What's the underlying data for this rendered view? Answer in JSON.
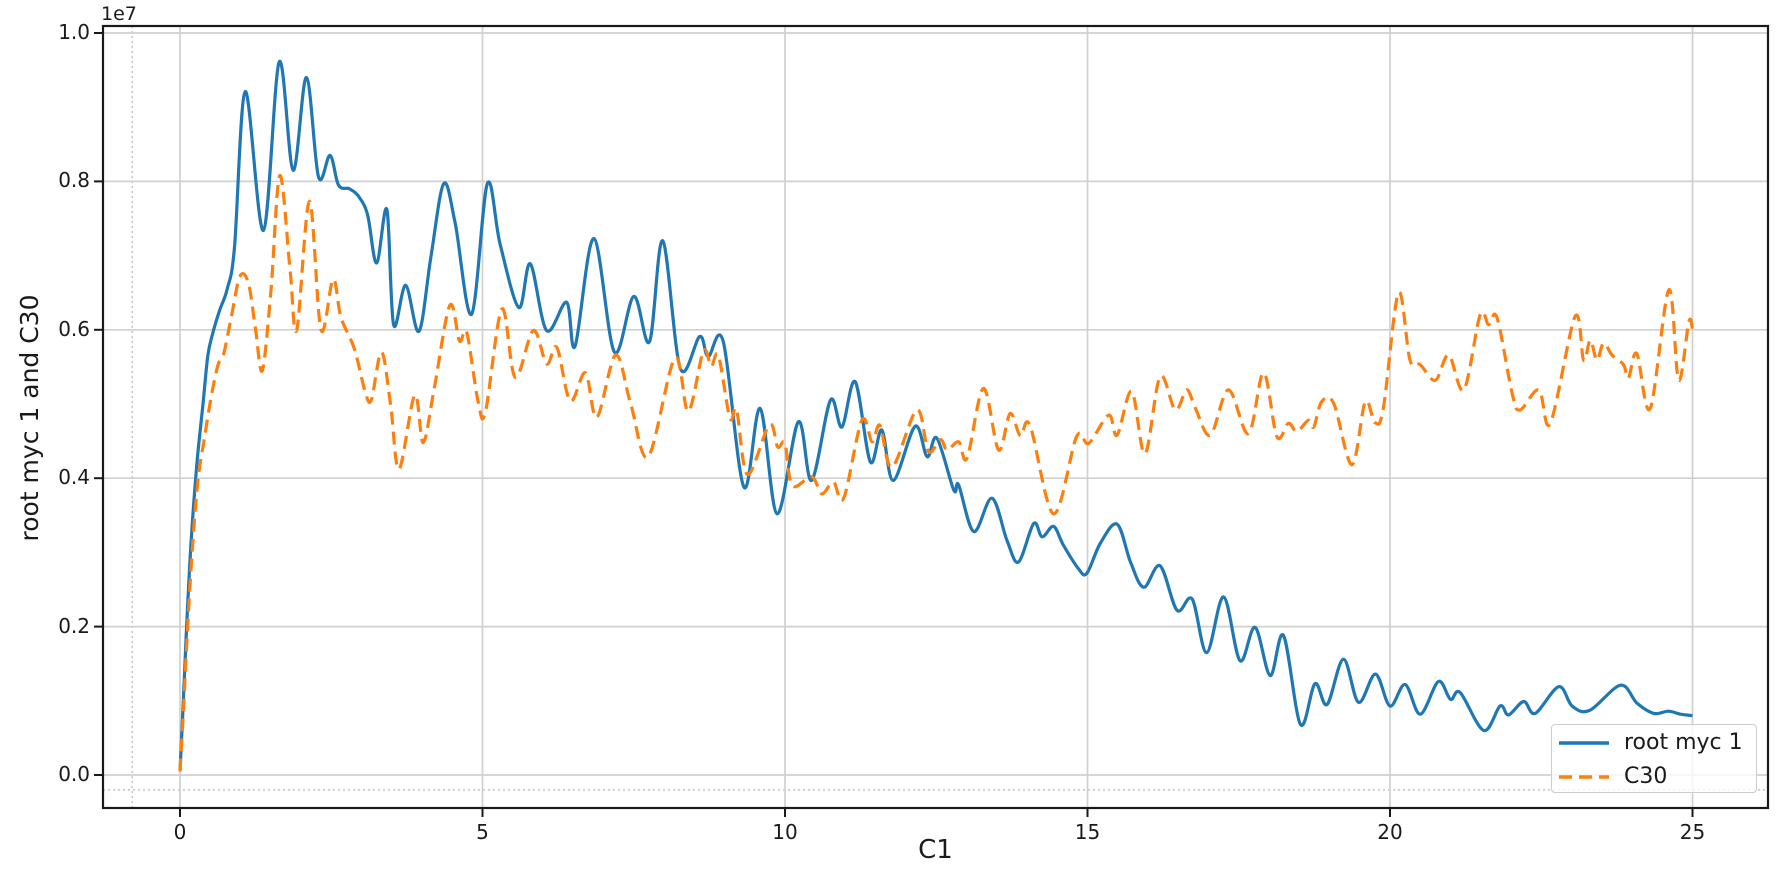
{
  "figure": {
    "offset_text": "1e7",
    "background_color": "#ffffff",
    "spine_color": "#1a1a1a",
    "grid_color": "#d0d0d0",
    "minor_dotted_color": "#b5b5b5",
    "text_color": "#1a1a1a",
    "legend_border_color": "#cccccc"
  },
  "chart_data": {
    "type": "line",
    "title": "",
    "xlabel": "C1",
    "ylabel": "root myc 1 and C30",
    "y_offset_label": "1e7",
    "xlim": [
      -1.25,
      26.25
    ],
    "ylim": [
      -450000,
      10140000
    ],
    "x_ticks": [
      0,
      5,
      10,
      15,
      20,
      25
    ],
    "x_tick_labels": [
      "0",
      "5",
      "10",
      "15",
      "20",
      "25"
    ],
    "y_ticks": [
      0,
      2000000,
      4000000,
      6000000,
      8000000,
      10000000
    ],
    "y_tick_labels": [
      "0.0",
      "0.2",
      "0.4",
      "0.6",
      "0.8",
      "1.0"
    ],
    "grid": true,
    "minor_dotted_vline_x": -0.79,
    "minor_dotted_hline_y": -200000,
    "legend_position": "lower right",
    "series": [
      {
        "name": "root myc 1",
        "color": "#1f77b4",
        "linestyle": "solid",
        "points": [
          [
            0,
            50000
          ],
          [
            0.05,
            900000
          ],
          [
            0.1,
            1850000
          ],
          [
            0.18,
            3100000
          ],
          [
            0.28,
            4200000
          ],
          [
            0.38,
            5000000
          ],
          [
            0.46,
            5650000
          ],
          [
            0.54,
            5950000
          ],
          [
            0.65,
            6250000
          ],
          [
            0.78,
            6550000
          ],
          [
            0.9,
            7100000
          ],
          [
            1.08,
            9210000
          ],
          [
            1.38,
            7340000
          ],
          [
            1.64,
            9610000
          ],
          [
            1.87,
            8150000
          ],
          [
            2.09,
            9400000
          ],
          [
            2.29,
            8060000
          ],
          [
            2.48,
            8350000
          ],
          [
            2.62,
            7950000
          ],
          [
            2.8,
            7900000
          ],
          [
            2.95,
            7800000
          ],
          [
            3.1,
            7550000
          ],
          [
            3.25,
            6900000
          ],
          [
            3.42,
            7620000
          ],
          [
            3.53,
            6070000
          ],
          [
            3.73,
            6600000
          ],
          [
            3.95,
            5980000
          ],
          [
            4.15,
            7000000
          ],
          [
            4.36,
            7970000
          ],
          [
            4.55,
            7430000
          ],
          [
            4.82,
            6210000
          ],
          [
            5.08,
            7970000
          ],
          [
            5.29,
            7160000
          ],
          [
            5.6,
            6300000
          ],
          [
            5.79,
            6890000
          ],
          [
            6.06,
            5990000
          ],
          [
            6.39,
            6370000
          ],
          [
            6.53,
            5780000
          ],
          [
            6.84,
            7230000
          ],
          [
            7.18,
            5700000
          ],
          [
            7.5,
            6450000
          ],
          [
            7.76,
            5840000
          ],
          [
            7.98,
            7200000
          ],
          [
            8.27,
            5480000
          ],
          [
            8.59,
            5910000
          ],
          [
            8.73,
            5640000
          ],
          [
            8.98,
            5840000
          ],
          [
            9.32,
            3880000
          ],
          [
            9.59,
            4940000
          ],
          [
            9.87,
            3520000
          ],
          [
            10.22,
            4760000
          ],
          [
            10.44,
            3970000
          ],
          [
            10.75,
            5050000
          ],
          [
            10.94,
            4690000
          ],
          [
            11.16,
            5300000
          ],
          [
            11.41,
            4220000
          ],
          [
            11.6,
            4650000
          ],
          [
            11.79,
            3970000
          ],
          [
            12.15,
            4700000
          ],
          [
            12.35,
            4290000
          ],
          [
            12.51,
            4540000
          ],
          [
            12.79,
            3840000
          ],
          [
            12.87,
            3910000
          ],
          [
            13.12,
            3280000
          ],
          [
            13.42,
            3730000
          ],
          [
            13.67,
            3160000
          ],
          [
            13.86,
            2870000
          ],
          [
            14.11,
            3390000
          ],
          [
            14.25,
            3210000
          ],
          [
            14.44,
            3350000
          ],
          [
            14.6,
            3100000
          ],
          [
            14.85,
            2780000
          ],
          [
            14.99,
            2720000
          ],
          [
            15.21,
            3120000
          ],
          [
            15.49,
            3380000
          ],
          [
            15.71,
            2870000
          ],
          [
            15.93,
            2530000
          ],
          [
            16.2,
            2820000
          ],
          [
            16.48,
            2220000
          ],
          [
            16.73,
            2370000
          ],
          [
            16.97,
            1650000
          ],
          [
            17.25,
            2400000
          ],
          [
            17.52,
            1540000
          ],
          [
            17.77,
            1990000
          ],
          [
            18.02,
            1340000
          ],
          [
            18.24,
            1880000
          ],
          [
            18.52,
            680000
          ],
          [
            18.76,
            1230000
          ],
          [
            18.96,
            950000
          ],
          [
            19.23,
            1560000
          ],
          [
            19.48,
            980000
          ],
          [
            19.76,
            1360000
          ],
          [
            20,
            930000
          ],
          [
            20.25,
            1220000
          ],
          [
            20.5,
            820000
          ],
          [
            20.8,
            1260000
          ],
          [
            21,
            1020000
          ],
          [
            21.16,
            1110000
          ],
          [
            21.55,
            600000
          ],
          [
            21.82,
            930000
          ],
          [
            21.96,
            810000
          ],
          [
            22.21,
            990000
          ],
          [
            22.4,
            830000
          ],
          [
            22.79,
            1190000
          ],
          [
            23.01,
            930000
          ],
          [
            23.3,
            870000
          ],
          [
            23.81,
            1210000
          ],
          [
            24.08,
            970000
          ],
          [
            24.36,
            830000
          ],
          [
            24.6,
            860000
          ],
          [
            24.8,
            820000
          ],
          [
            25,
            800000
          ]
        ]
      },
      {
        "name": "C30",
        "color": "#ff7f0e",
        "linestyle": "dashed",
        "points": [
          [
            0,
            50000
          ],
          [
            0.06,
            900000
          ],
          [
            0.12,
            1900000
          ],
          [
            0.2,
            3000000
          ],
          [
            0.3,
            4000000
          ],
          [
            0.4,
            4520000
          ],
          [
            0.52,
            5120000
          ],
          [
            0.63,
            5530000
          ],
          [
            0.72,
            5670000
          ],
          [
            0.85,
            6180000
          ],
          [
            0.99,
            6720000
          ],
          [
            1.13,
            6630000
          ],
          [
            1.25,
            6000000
          ],
          [
            1.36,
            5450000
          ],
          [
            1.5,
            6500000
          ],
          [
            1.65,
            8080000
          ],
          [
            1.82,
            6800000
          ],
          [
            1.93,
            6000000
          ],
          [
            2.14,
            7730000
          ],
          [
            2.33,
            6000000
          ],
          [
            2.53,
            6680000
          ],
          [
            2.66,
            6170000
          ],
          [
            2.88,
            5750000
          ],
          [
            3.05,
            5200000
          ],
          [
            3.16,
            5050000
          ],
          [
            3.33,
            5700000
          ],
          [
            3.48,
            5000000
          ],
          [
            3.62,
            4120000
          ],
          [
            3.88,
            5120000
          ],
          [
            4.02,
            4480000
          ],
          [
            4.2,
            5200000
          ],
          [
            4.46,
            6330000
          ],
          [
            4.62,
            5850000
          ],
          [
            4.74,
            5960000
          ],
          [
            4.93,
            5020000
          ],
          [
            5.05,
            4900000
          ],
          [
            5.32,
            6280000
          ],
          [
            5.54,
            5360000
          ],
          [
            5.84,
            5990000
          ],
          [
            6.06,
            5540000
          ],
          [
            6.23,
            5760000
          ],
          [
            6.45,
            5040000
          ],
          [
            6.7,
            5420000
          ],
          [
            6.89,
            4820000
          ],
          [
            7.2,
            5660000
          ],
          [
            7.45,
            5000000
          ],
          [
            7.74,
            4290000
          ],
          [
            8.18,
            5620000
          ],
          [
            8.4,
            4900000
          ],
          [
            8.65,
            5710000
          ],
          [
            8.78,
            5510000
          ],
          [
            8.9,
            5650000
          ],
          [
            9.09,
            4810000
          ],
          [
            9.2,
            4920000
          ],
          [
            9.38,
            4050000
          ],
          [
            9.74,
            4720000
          ],
          [
            9.88,
            4420000
          ],
          [
            10,
            4470000
          ],
          [
            10.12,
            3900000
          ],
          [
            10.44,
            4020000
          ],
          [
            10.61,
            3790000
          ],
          [
            10.8,
            3950000
          ],
          [
            10.97,
            3730000
          ],
          [
            11.27,
            4780000
          ],
          [
            11.44,
            4490000
          ],
          [
            11.57,
            4710000
          ],
          [
            11.77,
            4150000
          ],
          [
            12.18,
            4920000
          ],
          [
            12.37,
            4360000
          ],
          [
            12.57,
            4520000
          ],
          [
            12.68,
            4380000
          ],
          [
            12.87,
            4490000
          ],
          [
            13.01,
            4270000
          ],
          [
            13.28,
            5210000
          ],
          [
            13.53,
            4380000
          ],
          [
            13.72,
            4870000
          ],
          [
            13.89,
            4570000
          ],
          [
            14.05,
            4710000
          ],
          [
            14.44,
            3520000
          ],
          [
            14.82,
            4560000
          ],
          [
            15.02,
            4470000
          ],
          [
            15.35,
            4850000
          ],
          [
            15.49,
            4580000
          ],
          [
            15.73,
            5170000
          ],
          [
            15.95,
            4330000
          ],
          [
            16.2,
            5370000
          ],
          [
            16.45,
            4920000
          ],
          [
            16.64,
            5190000
          ],
          [
            16.78,
            4950000
          ],
          [
            17.03,
            4580000
          ],
          [
            17.33,
            5190000
          ],
          [
            17.66,
            4600000
          ],
          [
            17.91,
            5420000
          ],
          [
            18.13,
            4560000
          ],
          [
            18.32,
            4740000
          ],
          [
            18.46,
            4630000
          ],
          [
            18.65,
            4780000
          ],
          [
            18.74,
            4690000
          ],
          [
            18.87,
            5030000
          ],
          [
            19.07,
            5010000
          ],
          [
            19.37,
            4180000
          ],
          [
            19.59,
            5030000
          ],
          [
            19.75,
            4750000
          ],
          [
            19.89,
            4940000
          ],
          [
            20.14,
            6500000
          ],
          [
            20.33,
            5590000
          ],
          [
            20.5,
            5530000
          ],
          [
            20.75,
            5320000
          ],
          [
            20.97,
            5660000
          ],
          [
            21.22,
            5190000
          ],
          [
            21.49,
            6200000
          ],
          [
            21.63,
            6070000
          ],
          [
            21.77,
            6160000
          ],
          [
            22.02,
            5140000
          ],
          [
            22.15,
            4920000
          ],
          [
            22.46,
            5190000
          ],
          [
            22.65,
            4740000
          ],
          [
            23.06,
            6180000
          ],
          [
            23.2,
            5590000
          ],
          [
            23.31,
            5860000
          ],
          [
            23.42,
            5590000
          ],
          [
            23.53,
            5820000
          ],
          [
            23.67,
            5660000
          ],
          [
            23.86,
            5530000
          ],
          [
            23.94,
            5350000
          ],
          [
            24.08,
            5680000
          ],
          [
            24.3,
            4940000
          ],
          [
            24.61,
            6540000
          ],
          [
            24.77,
            5320000
          ],
          [
            24.94,
            6110000
          ],
          [
            25,
            6000000
          ]
        ]
      }
    ]
  }
}
